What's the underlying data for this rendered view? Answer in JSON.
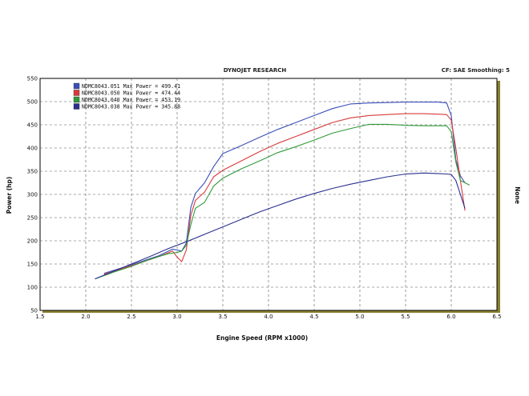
{
  "header": {
    "center_title": "DYNOJET RESEARCH",
    "right_info": "CF: SAE  Smoothing: 5"
  },
  "colors": {
    "background": "#ffffff",
    "plot_background": "#ffffff",
    "grid": "#555555",
    "frame": "#000000",
    "right_shadow": "#8a8030",
    "series_blue": "#3a4fb8",
    "series_red": "#d83a3a",
    "series_green": "#2f9a3a",
    "series_navy": "#2a2f8e"
  },
  "chart_data": {
    "type": "line",
    "title": "DYNOJET RESEARCH",
    "xlabel": "Engine Speed (RPM x1000)",
    "ylabel": "Power (hp)",
    "right_label": "None",
    "xlim": [
      1.5,
      6.5
    ],
    "ylim": [
      50,
      550
    ],
    "xticks": [
      "1.5",
      "2.0",
      "2.5",
      "3.0",
      "3.5",
      "4.0",
      "4.5",
      "5.0",
      "5.5",
      "6.0",
      "6.5"
    ],
    "yticks": [
      "50",
      "100",
      "150",
      "200",
      "250",
      "300",
      "350",
      "400",
      "450",
      "500",
      "550"
    ],
    "grid": true,
    "legend_position": "top-left",
    "series": [
      {
        "name": "NDMC8043.051 Max Power = 499.41",
        "color": "#3a4fb8",
        "x": [
          2.2,
          2.4,
          2.6,
          2.8,
          2.95,
          3.0,
          3.05,
          3.1,
          3.15,
          3.2,
          3.3,
          3.4,
          3.5,
          3.7,
          3.9,
          4.1,
          4.3,
          4.5,
          4.7,
          4.9,
          5.1,
          5.3,
          5.5,
          5.7,
          5.85,
          5.95,
          6.0,
          6.05,
          6.1,
          6.15
        ],
        "y": [
          130,
          142,
          155,
          168,
          182,
          180,
          178,
          195,
          272,
          302,
          325,
          360,
          388,
          405,
          423,
          440,
          455,
          470,
          485,
          495,
          497,
          498,
          499,
          499,
          499,
          497,
          470,
          375,
          340,
          325
        ]
      },
      {
        "name": "NDMC8043.050 Max Power = 474.44",
        "color": "#d83a3a",
        "x": [
          2.2,
          2.4,
          2.6,
          2.8,
          2.95,
          3.0,
          3.05,
          3.1,
          3.15,
          3.2,
          3.3,
          3.4,
          3.5,
          3.7,
          3.9,
          4.1,
          4.3,
          4.5,
          4.7,
          4.9,
          5.1,
          5.3,
          5.5,
          5.7,
          5.85,
          5.95,
          6.0,
          6.05,
          6.1,
          6.15
        ],
        "y": [
          128,
          140,
          153,
          166,
          178,
          165,
          155,
          180,
          255,
          287,
          305,
          338,
          352,
          372,
          392,
          410,
          425,
          440,
          455,
          465,
          470,
          472,
          474,
          474,
          473,
          472,
          460,
          400,
          330,
          265
        ]
      },
      {
        "name": "NDMC8043.040 Max Power = 453.19",
        "color": "#2f9a3a",
        "x": [
          2.1,
          2.3,
          2.5,
          2.7,
          2.9,
          3.0,
          3.05,
          3.1,
          3.15,
          3.2,
          3.3,
          3.4,
          3.5,
          3.7,
          3.9,
          4.1,
          4.3,
          4.5,
          4.7,
          4.9,
          5.1,
          5.3,
          5.5,
          5.7,
          5.85,
          5.95,
          6.0,
          6.05,
          6.1,
          6.2
        ],
        "y": [
          118,
          132,
          145,
          160,
          172,
          175,
          178,
          190,
          235,
          270,
          283,
          318,
          335,
          355,
          372,
          390,
          403,
          417,
          432,
          442,
          451,
          451,
          449,
          448,
          448,
          448,
          435,
          370,
          330,
          320
        ]
      },
      {
        "name": "NDMC8043.038 Max Power = 345.88",
        "color": "#2a2f8e",
        "x": [
          2.1,
          2.3,
          2.5,
          2.7,
          2.9,
          3.1,
          3.3,
          3.5,
          3.7,
          3.9,
          4.1,
          4.3,
          4.5,
          4.7,
          4.9,
          5.1,
          5.3,
          5.5,
          5.7,
          5.85,
          5.95,
          6.0,
          6.05,
          6.1,
          6.15
        ],
        "y": [
          118,
          134,
          150,
          166,
          183,
          198,
          214,
          230,
          246,
          262,
          276,
          290,
          302,
          313,
          322,
          330,
          338,
          344,
          346,
          345,
          344,
          343,
          330,
          300,
          270
        ]
      }
    ]
  }
}
